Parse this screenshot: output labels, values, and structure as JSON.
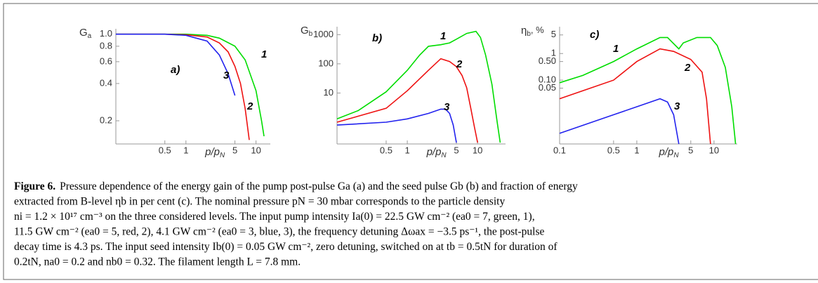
{
  "chart_data": [
    {
      "type": "line",
      "xlabel": "p/p",
      "xlabel_sub": "N",
      "ylabel": "G",
      "ylabel_sub": "a",
      "ylabel_suffix": "",
      "log_x": true,
      "log_y": true,
      "xlim": [
        0.1,
        16
      ],
      "ylim": [
        0.13,
        1.05
      ],
      "xticks": [
        0.5,
        1,
        5,
        10
      ],
      "yticks": [
        {
          "value": 1,
          "label": "1.0"
        },
        0.8,
        0.6,
        0.4,
        0.2
      ],
      "annotations": [
        "a)",
        "1",
        "2",
        "3"
      ],
      "series": [
        {
          "name": "1",
          "color": "#00dd00",
          "x": [
            0.1,
            0.5,
            1,
            2,
            3,
            5,
            7,
            10,
            12,
            13
          ],
          "values": [
            1,
            1,
            1,
            0.98,
            0.93,
            0.8,
            0.62,
            0.35,
            0.2,
            0.15
          ]
        },
        {
          "name": "2",
          "color": "#ee1111",
          "x": [
            0.1,
            0.5,
            1,
            2,
            3,
            4,
            5,
            6,
            7,
            8
          ],
          "values": [
            1,
            1,
            0.99,
            0.95,
            0.85,
            0.72,
            0.55,
            0.4,
            0.25,
            0.14
          ]
        },
        {
          "name": "3",
          "color": "#2222ee",
          "x": [
            0.1,
            0.5,
            1,
            2,
            3,
            4,
            5
          ],
          "values": [
            1,
            1,
            0.98,
            0.88,
            0.68,
            0.48,
            0.32
          ]
        }
      ]
    },
    {
      "type": "line",
      "xlabel": "p/p",
      "xlabel_sub": "N",
      "ylabel": "G",
      "ylabel_sub": "b",
      "ylabel_suffix": "",
      "log_x": true,
      "log_y": true,
      "xlim": [
        0.1,
        25
      ],
      "ylim": [
        0.18,
        1500
      ],
      "xticks": [
        0.5,
        1,
        5,
        10
      ],
      "yticks": [
        1000,
        100,
        10
      ],
      "annotations": [
        "b)",
        "1",
        "2",
        "3"
      ],
      "series": [
        {
          "name": "1",
          "color": "#00dd00",
          "x": [
            0.1,
            0.2,
            0.5,
            1,
            1.5,
            2,
            3,
            4,
            5,
            7,
            9.5,
            11,
            13,
            16,
            19,
            21
          ],
          "values": [
            1.3,
            2.5,
            11,
            60,
            200,
            400,
            450,
            520,
            700,
            1100,
            1300,
            800,
            200,
            20,
            1,
            0.2
          ]
        },
        {
          "name": "2",
          "color": "#ee1111",
          "x": [
            0.1,
            0.5,
            1,
            2,
            3,
            4,
            5,
            6,
            7,
            8,
            9,
            10
          ],
          "values": [
            1,
            3,
            12,
            60,
            150,
            120,
            80,
            40,
            15,
            3,
            0.7,
            0.2
          ]
        },
        {
          "name": "3",
          "color": "#2222ee",
          "x": [
            0.1,
            0.5,
            1,
            2,
            3,
            3.5,
            4,
            4.5,
            5
          ],
          "values": [
            0.8,
            1,
            1.3,
            2,
            2.8,
            2.8,
            2,
            0.8,
            0.2
          ]
        }
      ]
    },
    {
      "type": "line",
      "xlabel": "p/p",
      "xlabel_sub": "N",
      "ylabel": "η",
      "ylabel_sub": "b",
      "ylabel_suffix": ", %",
      "log_x": true,
      "log_y": true,
      "xlim": [
        0.1,
        20
      ],
      "ylim": [
        0.0004,
        8
      ],
      "xticks": [
        0.1,
        0.5,
        1,
        5,
        10
      ],
      "yticks": [
        5,
        1,
        {
          "value": 0.5,
          "label": "0.50"
        },
        {
          "value": 0.1,
          "label": "0.10"
        },
        0.05
      ],
      "annotations": [
        "c)",
        "1",
        "2",
        "3"
      ],
      "series": [
        {
          "name": "1",
          "color": "#00dd00",
          "x": [
            0.1,
            0.2,
            0.5,
            1,
            2,
            2.5,
            3.5,
            4,
            6,
            9,
            11,
            14,
            17,
            19
          ],
          "values": [
            0.08,
            0.15,
            0.5,
            1.5,
            4,
            4,
            1.5,
            2.5,
            4,
            4,
            2,
            0.3,
            0.01,
            0.0004
          ]
        },
        {
          "name": "2",
          "color": "#ee1111",
          "x": [
            0.1,
            0.5,
            1,
            2,
            3,
            5,
            7,
            8,
            9
          ],
          "values": [
            0.02,
            0.1,
            0.5,
            1.5,
            1.2,
            0.6,
            0.2,
            0.02,
            0.0004
          ]
        },
        {
          "name": "3",
          "color": "#2222ee",
          "x": [
            0.1,
            0.5,
            1,
            2,
            2.5,
            3,
            3.5
          ],
          "values": [
            0.001,
            0.005,
            0.01,
            0.02,
            0.015,
            0.005,
            0.0004
          ]
        }
      ]
    }
  ],
  "caption": {
    "label": "Figure 6.",
    "lines": [
      "Pressure dependence of the energy gain of the pump post-pulse Ga (a) and the seed pulse Gb (b) and fraction of energy",
      "extracted from B-level ηb in per cent (c). The nominal pressure pN = 30 mbar corresponds to the particle density",
      "ni = 1.2 × 10¹⁷ cm⁻³ on the three considered levels. The input pump intensity Ia(0) = 22.5 GW cm⁻² (ea0 = 7, green, 1),",
      "11.5 GW cm⁻² (ea0 = 5, red, 2), 4.1 GW cm⁻² (ea0 = 3, blue, 3), the frequency detuning Δωax = −3.5 ps⁻¹, the post-pulse",
      "decay time is 4.3 ps. The input seed intensity Ib(0) = 0.05 GW cm⁻², zero detuning, switched on at tb = 0.5tN for duration of",
      "0.2tN, na0 = 0.2 and nb0 = 0.32. The filament length L = 7.8 mm."
    ]
  }
}
